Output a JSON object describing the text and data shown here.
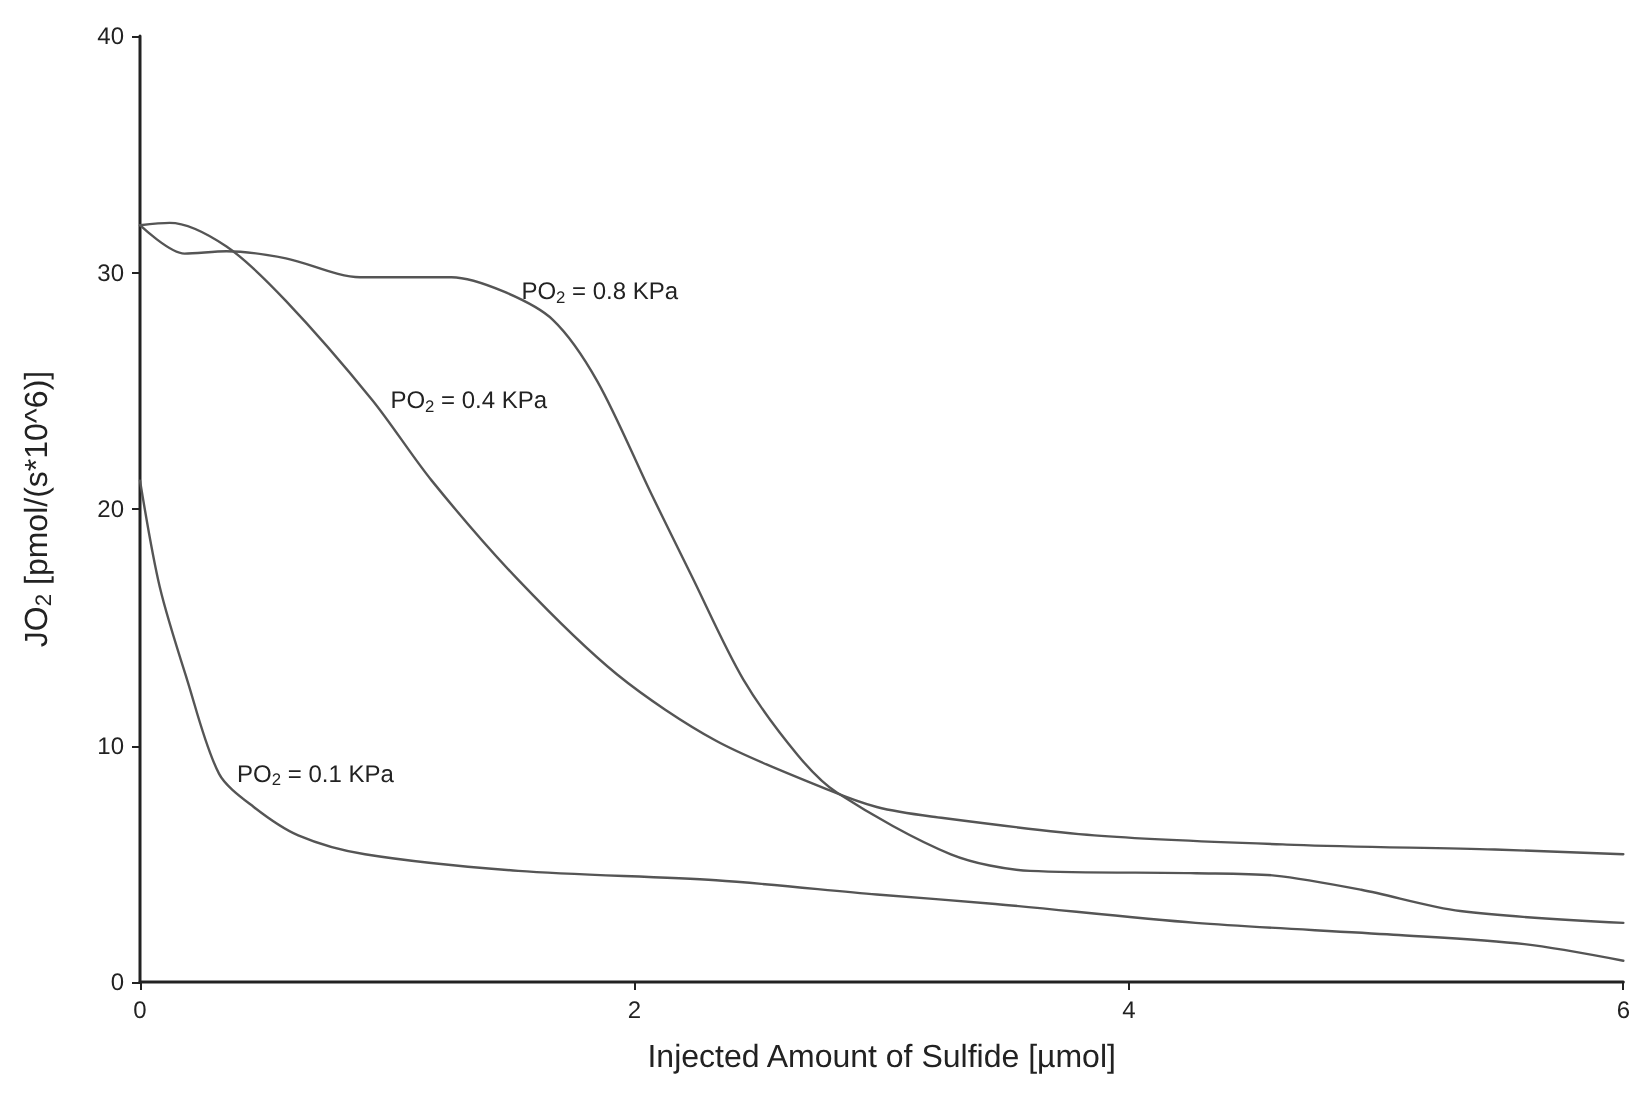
{
  "chart_data": {
    "type": "line",
    "xlabel": "Injected Amount of Sulfide [µmol]",
    "ylabel": "JO$_{2}$ [pmol/(s*10^6)]",
    "xlim": [
      0,
      6
    ],
    "xticks": [
      0,
      2,
      4,
      6
    ],
    "ylim": [
      0,
      40
    ],
    "yticks": [
      0,
      10,
      20,
      30,
      40
    ],
    "grid": false,
    "marker": "none",
    "line_style": "solid",
    "series": [
      {
        "color": "#555555",
        "x": [
          0,
          0.18,
          0.35,
          0.59,
          0.89,
          1.26,
          1.47,
          1.67,
          1.85,
          2.07,
          2.23,
          2.44,
          2.66,
          2.82,
          3.28,
          3.6,
          4.27,
          4.59,
          4.94,
          5.34,
          6
        ],
        "values": [
          32.0,
          30.8,
          30.9,
          30.6,
          29.8,
          29.8,
          29.2,
          28.0,
          25.4,
          20.6,
          17.2,
          12.8,
          9.6,
          8.0,
          5.4,
          4.7,
          4.6,
          4.5,
          3.9,
          3.0,
          2.5
        ]
      },
      {
        "color": "#555555",
        "x": [
          0,
          0.12,
          0.35,
          0.59,
          0.94,
          1.18,
          1.53,
          1.93,
          2.33,
          2.79,
          2.98,
          3.2,
          3.86,
          4.67,
          5.48,
          6
        ],
        "values": [
          32.0,
          32.1,
          31.1,
          28.8,
          24.6,
          21.2,
          17.0,
          13.0,
          10.2,
          8.1,
          7.4,
          7.0,
          6.2,
          5.8,
          5.6,
          5.4
        ]
      },
      {
        "color": "#555555",
        "x": [
          0,
          0.08,
          0.19,
          0.32,
          0.46,
          0.64,
          0.91,
          1.53,
          2.33,
          2.98,
          3.46,
          4.27,
          5.07,
          5.6,
          6
        ],
        "values": [
          21.2,
          16.7,
          12.8,
          8.8,
          7.4,
          6.2,
          5.4,
          4.7,
          4.3,
          3.7,
          3.3,
          2.5,
          2.0,
          1.6,
          0.9
        ]
      }
    ],
    "annotations": [
      {
        "text": "PO$_{2}$ = 0.8 KPa",
        "x": 1.47,
        "y": 29.2
      },
      {
        "text": "PO$_{2}$ = 0.4 KPa",
        "x": 0.94,
        "y": 24.6
      },
      {
        "text": "PO$_{2}$ = 0.1 KPa",
        "x": 0.32,
        "y": 8.8
      }
    ]
  }
}
